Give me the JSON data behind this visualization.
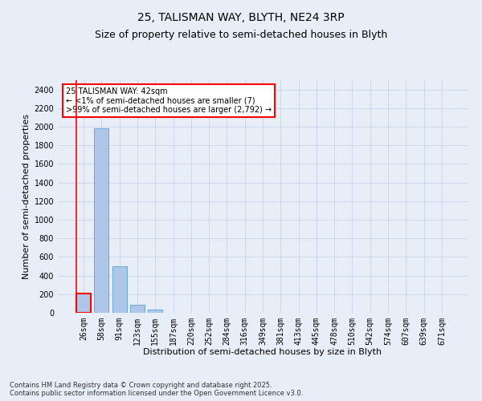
{
  "title": "25, TALISMAN WAY, BLYTH, NE24 3RP",
  "subtitle": "Size of property relative to semi-detached houses in Blyth",
  "xlabel": "Distribution of semi-detached houses by size in Blyth",
  "ylabel": "Number of semi-detached properties",
  "footer_line1": "Contains HM Land Registry data © Crown copyright and database right 2025.",
  "footer_line2": "Contains public sector information licensed under the Open Government Licence v3.0.",
  "categories": [
    "26sqm",
    "58sqm",
    "91sqm",
    "123sqm",
    "155sqm",
    "187sqm",
    "220sqm",
    "252sqm",
    "284sqm",
    "316sqm",
    "349sqm",
    "381sqm",
    "413sqm",
    "445sqm",
    "478sqm",
    "510sqm",
    "542sqm",
    "574sqm",
    "607sqm",
    "639sqm",
    "671sqm"
  ],
  "values": [
    205,
    1980,
    500,
    82,
    32,
    0,
    0,
    0,
    0,
    0,
    0,
    0,
    0,
    0,
    0,
    0,
    0,
    0,
    0,
    0,
    0
  ],
  "bar_color": "#aec6e8",
  "bar_edge_color": "#5a9fd4",
  "subject_bar_edge_color": "red",
  "subject_bar_index": 0,
  "annotation_text": "25 TALISMAN WAY: 42sqm\n← <1% of semi-detached houses are smaller (7)\n>99% of semi-detached houses are larger (2,792) →",
  "annotation_box_color": "white",
  "annotation_box_edge_color": "red",
  "subject_line_color": "red",
  "ylim": [
    0,
    2500
  ],
  "yticks": [
    0,
    200,
    400,
    600,
    800,
    1000,
    1200,
    1400,
    1600,
    1800,
    2000,
    2200,
    2400
  ],
  "grid_color": "#c8d4e8",
  "background_color": "#e8eef8",
  "title_fontsize": 10,
  "subtitle_fontsize": 9,
  "axis_label_fontsize": 8,
  "tick_fontsize": 7,
  "annotation_fontsize": 7,
  "footer_fontsize": 6
}
